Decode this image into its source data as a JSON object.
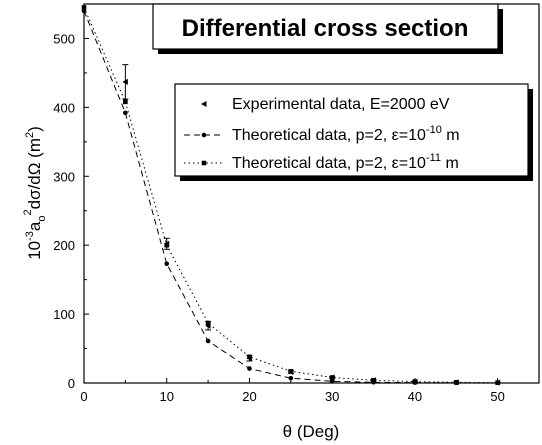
{
  "chart_data": {
    "type": "scatter",
    "title": "Differential cross section",
    "xlabel": "θ (Deg)",
    "ylabel": "10-3ao2dσ/dΩ (m2)",
    "ylabel_parts": {
      "mult": "10",
      "mult_exp": "-3",
      "base": "a",
      "base_sub": "o",
      "base_sup": "2",
      "rest": "dσ/dΩ (m",
      "unit_exp": "2",
      "close": ")"
    },
    "xlim": [
      0,
      55
    ],
    "ylim": [
      0,
      550
    ],
    "xticks": [
      0,
      10,
      20,
      30,
      40,
      50
    ],
    "yticks": [
      0,
      100,
      200,
      300,
      400,
      500
    ],
    "grid": false,
    "legend_position": "top-right",
    "series": [
      {
        "name": "Experimental data, E=2000 eV",
        "marker": "triangle-left",
        "line": "none",
        "x": [
          5,
          10,
          15,
          20,
          25,
          30,
          35,
          40,
          45,
          50
        ],
        "y": [
          437,
          202,
          83,
          36,
          16,
          8,
          4,
          2,
          1,
          0.5
        ],
        "yerr": [
          25,
          8,
          6,
          4,
          2,
          1.5,
          1,
          1,
          0.5,
          0.5
        ]
      },
      {
        "name": "Theoretical data, p=2, ε=10-10 m",
        "name_parts": {
          "prefix": "Theoretical data, p=2, ε=10",
          "exp": "-10",
          "suffix": " m"
        },
        "marker": "circle",
        "line": "dashed",
        "x": [
          0,
          5,
          10,
          15,
          20,
          25,
          30,
          35,
          40,
          45,
          50
        ],
        "y": [
          540,
          392,
          173,
          61,
          21,
          7,
          2.5,
          1,
          0.5,
          0.2,
          0.1
        ]
      },
      {
        "name": "Theoretical data, p=2, ε=10-11 m",
        "name_parts": {
          "prefix": "Theoretical data, p=2, ε=10",
          "exp": "-11",
          "suffix": " m"
        },
        "marker": "square",
        "line": "dotted",
        "x": [
          0,
          5,
          10,
          15,
          20,
          25,
          30,
          35,
          40,
          45,
          50
        ],
        "y": [
          545,
          408,
          200,
          87,
          38,
          17,
          8,
          4,
          2,
          1,
          0.5
        ]
      }
    ]
  }
}
